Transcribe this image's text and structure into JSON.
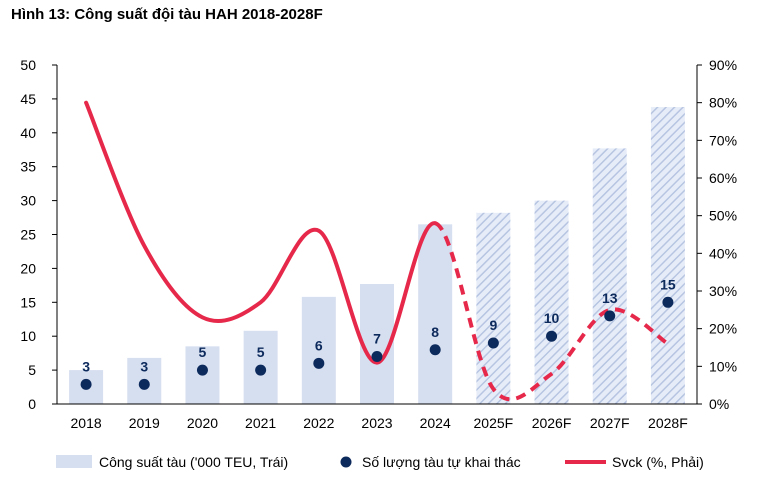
{
  "figure_title": "Hình 13: Công suất đội tàu HAH 2018-2028F",
  "colors": {
    "bar_fill": "#d6dff0",
    "bar_hatch": "#b7c5e2",
    "dot": "#0d2a5c",
    "line": "#e6294b",
    "axis": "#000000"
  },
  "chart_data": {
    "type": "bar",
    "categories": [
      "2018",
      "2019",
      "2020",
      "2021",
      "2022",
      "2023",
      "2024",
      "2025F",
      "2026F",
      "2027F",
      "2028F"
    ],
    "forecast_from_index": 7,
    "series": [
      {
        "name": "Công suất tàu ('000 TEU, Trái)",
        "type": "bar",
        "axis": "left",
        "values": [
          5,
          6.8,
          8.5,
          10.8,
          15.8,
          17.7,
          26.5,
          28.2,
          30,
          37.7,
          43.8
        ]
      },
      {
        "name": "Số lượng tàu tự khai thác",
        "type": "scatter",
        "axis": "left",
        "values": [
          2.9,
          2.9,
          5,
          5,
          6,
          7,
          8,
          9,
          10,
          13,
          15
        ],
        "labels": [
          "3",
          "3",
          "5",
          "5",
          "6",
          "7",
          "8",
          "9",
          "10",
          "13",
          "15"
        ]
      },
      {
        "name": "Svck (%, Phải)",
        "type": "line",
        "axis": "right",
        "values": [
          80,
          42,
          23,
          27,
          46,
          11,
          48,
          4,
          8,
          25,
          16
        ]
      }
    ],
    "y_left": {
      "min": 0,
      "max": 50,
      "step": 5,
      "ticks": [
        "0",
        "5",
        "10",
        "15",
        "20",
        "25",
        "30",
        "35",
        "40",
        "45",
        "50"
      ]
    },
    "y_right": {
      "min": 0,
      "max": 90,
      "step": 10,
      "ticks": [
        "0%",
        "10%",
        "20%",
        "30%",
        "40%",
        "50%",
        "60%",
        "70%",
        "80%",
        "90%"
      ]
    },
    "legend_position": "bottom",
    "grid": false
  }
}
